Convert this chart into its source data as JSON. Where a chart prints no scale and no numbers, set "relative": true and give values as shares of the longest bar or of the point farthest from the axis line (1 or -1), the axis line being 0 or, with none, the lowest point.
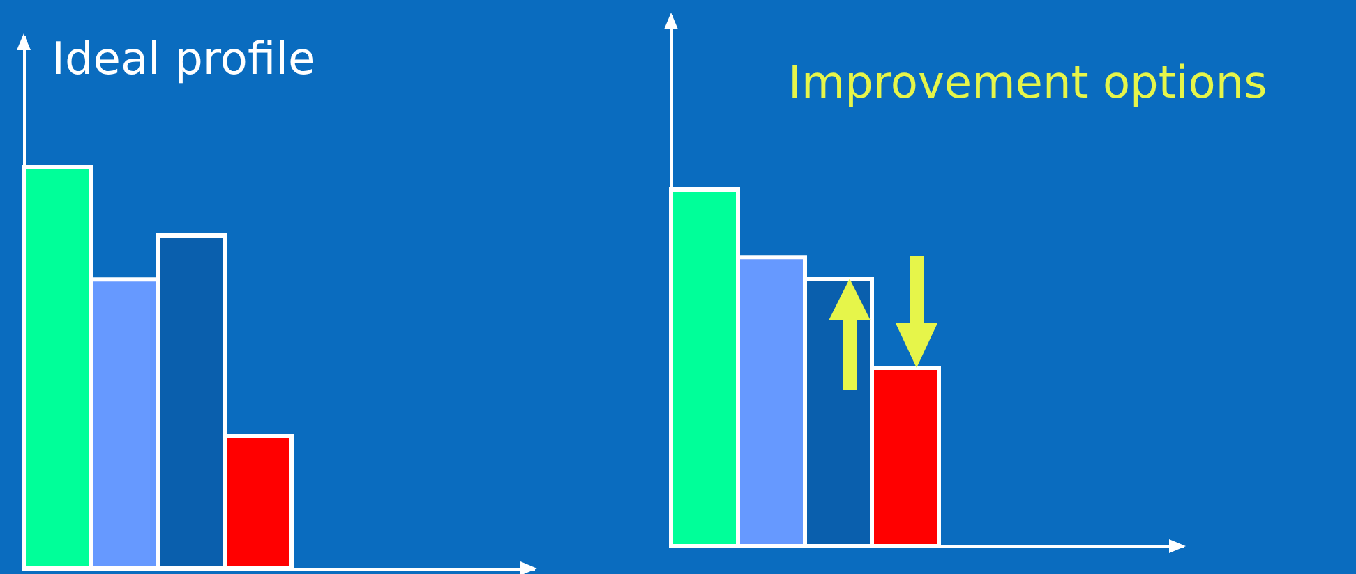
{
  "chart_data": [
    {
      "type": "bar",
      "title": "Ideal profile",
      "categories": [
        null,
        null,
        null,
        null
      ],
      "values": [
        1,
        0.72,
        0.83,
        0.33
      ],
      "colors": [
        "#00ff99",
        "#6699ff",
        "#0a5fad",
        "#ff0000"
      ],
      "relative": true,
      "tick_labels": false
    },
    {
      "type": "bar",
      "title": "Improvement options",
      "categories": [
        null,
        null,
        null,
        null
      ],
      "values": [
        1,
        0.81,
        0.75,
        0.5
      ],
      "colors": [
        "#00ff99",
        "#6699ff",
        "#0a5fad",
        "#ff0000"
      ],
      "relative": true,
      "tick_labels": false
    }
  ]
}
